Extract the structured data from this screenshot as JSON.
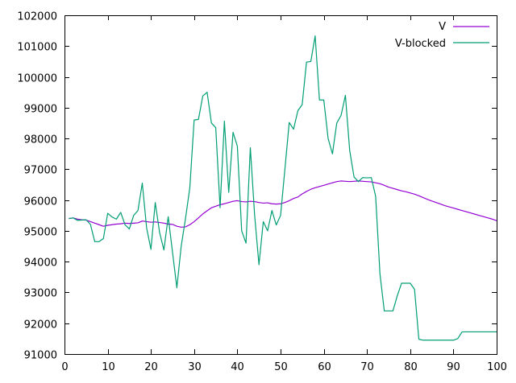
{
  "chart_data": {
    "type": "line",
    "title": "",
    "xlabel": "",
    "ylabel": "",
    "xlim": [
      0,
      100
    ],
    "ylim": [
      91000,
      102000
    ],
    "xticks": [
      0,
      10,
      20,
      30,
      40,
      50,
      60,
      70,
      80,
      90,
      100
    ],
    "yticks": [
      91000,
      92000,
      93000,
      94000,
      95000,
      96000,
      97000,
      98000,
      99000,
      100000,
      101000,
      102000
    ],
    "grid": false,
    "legend_position": "top-right",
    "series": [
      {
        "name": "V",
        "color": "#9400d3",
        "x": [
          1,
          2,
          3,
          4,
          5,
          6,
          7,
          8,
          9,
          10,
          11,
          12,
          13,
          14,
          15,
          16,
          17,
          18,
          19,
          20,
          21,
          22,
          23,
          24,
          25,
          26,
          27,
          28,
          29,
          30,
          31,
          32,
          33,
          34,
          35,
          36,
          37,
          38,
          39,
          40,
          41,
          42,
          43,
          44,
          45,
          46,
          47,
          48,
          49,
          50,
          51,
          52,
          53,
          54,
          55,
          56,
          57,
          58,
          59,
          60,
          61,
          62,
          63,
          64,
          65,
          66,
          67,
          68,
          69,
          70,
          71,
          72,
          73,
          74,
          75,
          76,
          77,
          78,
          79,
          80,
          81,
          82,
          83,
          84,
          85,
          86,
          87,
          88,
          89,
          90,
          91,
          92,
          93,
          94,
          95,
          96,
          97,
          98,
          99,
          100
        ],
        "y": [
          95400,
          95420,
          95380,
          95360,
          95350,
          95300,
          95250,
          95200,
          95150,
          95180,
          95200,
          95220,
          95230,
          95250,
          95240,
          95250,
          95260,
          95320,
          95300,
          95280,
          95290,
          95270,
          95250,
          95220,
          95210,
          95150,
          95120,
          95130,
          95200,
          95300,
          95420,
          95550,
          95650,
          95750,
          95800,
          95850,
          95880,
          95920,
          95960,
          95980,
          95950,
          95940,
          95960,
          95950,
          95920,
          95900,
          95910,
          95880,
          95870,
          95880,
          95920,
          95980,
          96050,
          96100,
          96200,
          96280,
          96350,
          96400,
          96440,
          96480,
          96520,
          96560,
          96600,
          96620,
          96610,
          96600,
          96610,
          96620,
          96610,
          96600,
          96590,
          96560,
          96530,
          96480,
          96420,
          96380,
          96340,
          96300,
          96270,
          96230,
          96190,
          96140,
          96080,
          96020,
          95970,
          95920,
          95870,
          95820,
          95780,
          95740,
          95700,
          95660,
          95620,
          95580,
          95540,
          95500,
          95460,
          95420,
          95380,
          95330
        ]
      },
      {
        "name": "V-blocked",
        "color": "#009e73",
        "x": [
          1,
          2,
          3,
          4,
          5,
          6,
          7,
          8,
          9,
          10,
          11,
          12,
          13,
          14,
          15,
          16,
          17,
          18,
          19,
          20,
          21,
          22,
          23,
          24,
          25,
          26,
          27,
          28,
          29,
          30,
          31,
          32,
          33,
          34,
          35,
          36,
          37,
          38,
          39,
          40,
          41,
          42,
          43,
          44,
          45,
          46,
          47,
          48,
          49,
          50,
          51,
          52,
          53,
          54,
          55,
          56,
          57,
          58,
          59,
          60,
          61,
          62,
          63,
          64,
          65,
          66,
          67,
          68,
          69,
          70,
          71,
          72,
          73,
          74,
          75,
          76,
          77,
          78,
          79,
          80,
          81,
          82,
          83,
          84,
          85,
          86,
          87,
          88,
          89,
          90,
          91,
          92,
          93,
          94,
          95,
          96,
          97,
          98,
          99,
          100
        ],
        "y": [
          95400,
          95420,
          95340,
          95350,
          95360,
          95210,
          94650,
          94650,
          94750,
          95570,
          95450,
          95380,
          95600,
          95200,
          95060,
          95500,
          95660,
          96550,
          95100,
          94400,
          95920,
          94950,
          94380,
          95460,
          94300,
          93150,
          94500,
          95400,
          96400,
          98600,
          98620,
          99380,
          99500,
          98500,
          98350,
          95750,
          98560,
          96250,
          98200,
          97750,
          95000,
          94600,
          97700,
          95500,
          93900,
          95300,
          95000,
          95660,
          95190,
          95500,
          97000,
          98520,
          98300,
          98900,
          99100,
          100480,
          100500,
          101330,
          99250,
          99250,
          98000,
          97500,
          98500,
          98750,
          99400,
          97600,
          96750,
          96600,
          96730,
          96720,
          96730,
          96120,
          93600,
          92400,
          92400,
          92400,
          92890,
          93300,
          93300,
          93300,
          93100,
          91480,
          91450,
          91450,
          91450,
          91450,
          91450,
          91450,
          91450,
          91450,
          91500,
          91720,
          91720,
          91720,
          91720,
          91720,
          91720,
          91720,
          91720,
          91720
        ]
      }
    ]
  }
}
